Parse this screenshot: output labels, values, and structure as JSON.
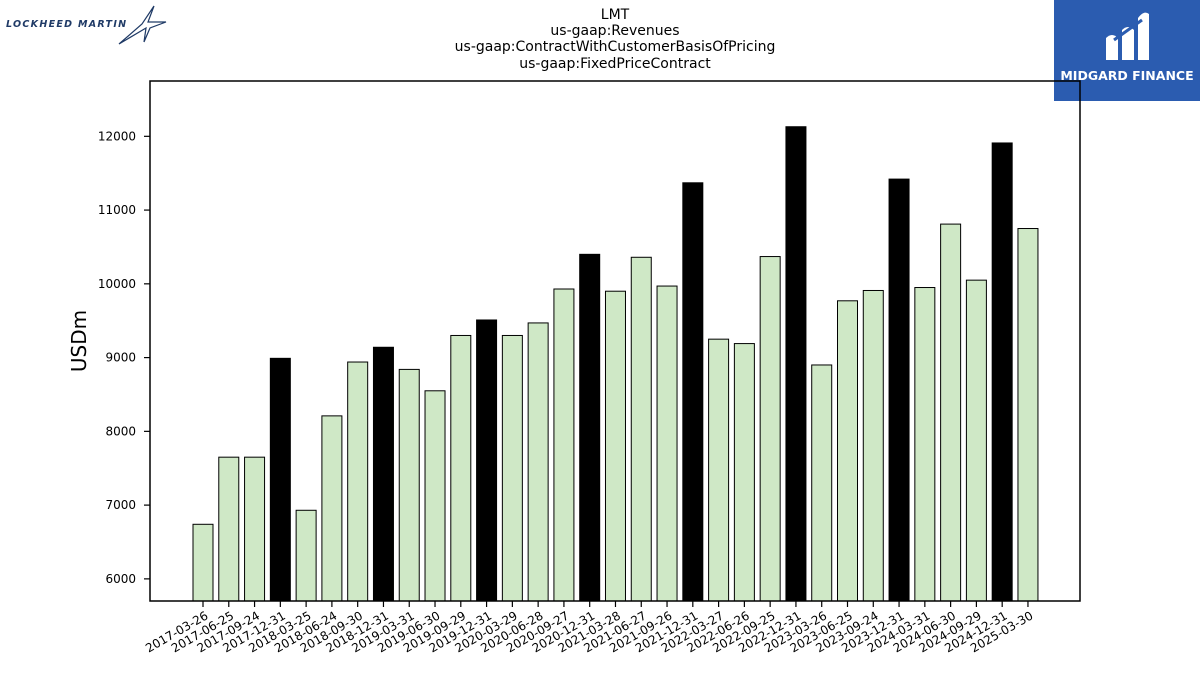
{
  "logos": {
    "left_brand": "LOCKHEED MARTIN",
    "right_brand": "MIDGARD FINANCE"
  },
  "colors": {
    "bar_regular": "#cfe8c6",
    "bar_q4": "#000000",
    "bar_edge": "#000000",
    "brand_blue": "#2b5cb0",
    "lm_navy": "#1f3a66"
  },
  "chart_data": {
    "type": "bar",
    "title": [
      "LMT",
      "us-gaap:Revenues",
      "us-gaap:ContractWithCustomerBasisOfPricing",
      "us-gaap:FixedPriceContract"
    ],
    "xlabel": "",
    "ylabel": "USDm",
    "ylim": [
      5700,
      12750
    ],
    "yticks": [
      6000,
      7000,
      8000,
      9000,
      10000,
      11000,
      12000
    ],
    "grid": false,
    "categories": [
      "2017-03-26",
      "2017-06-25",
      "2017-09-24",
      "2017-12-31",
      "2018-03-25",
      "2018-06-24",
      "2018-09-30",
      "2018-12-31",
      "2019-03-31",
      "2019-06-30",
      "2019-09-29",
      "2019-12-31",
      "2020-03-29",
      "2020-06-28",
      "2020-09-27",
      "2020-12-31",
      "2021-03-28",
      "2021-06-27",
      "2021-09-26",
      "2021-12-31",
      "2022-03-27",
      "2022-06-26",
      "2022-09-25",
      "2022-12-31",
      "2023-03-26",
      "2023-06-25",
      "2023-09-24",
      "2023-12-31",
      "2024-03-31",
      "2024-06-30",
      "2024-09-29",
      "2024-12-31",
      "2025-03-30"
    ],
    "values": [
      6740,
      7650,
      7650,
      8990,
      6930,
      8210,
      8940,
      9140,
      8840,
      8550,
      9300,
      9510,
      9300,
      9470,
      9930,
      10400,
      9900,
      10360,
      9970,
      11370,
      9250,
      9190,
      10370,
      12130,
      8900,
      9770,
      9910,
      11420,
      9950,
      10810,
      10050,
      11910,
      10750
    ],
    "highlight_annual": [
      false,
      false,
      false,
      true,
      false,
      false,
      false,
      true,
      false,
      false,
      false,
      true,
      false,
      false,
      false,
      true,
      false,
      false,
      false,
      true,
      false,
      false,
      false,
      true,
      false,
      false,
      false,
      true,
      false,
      false,
      false,
      true,
      false
    ]
  }
}
